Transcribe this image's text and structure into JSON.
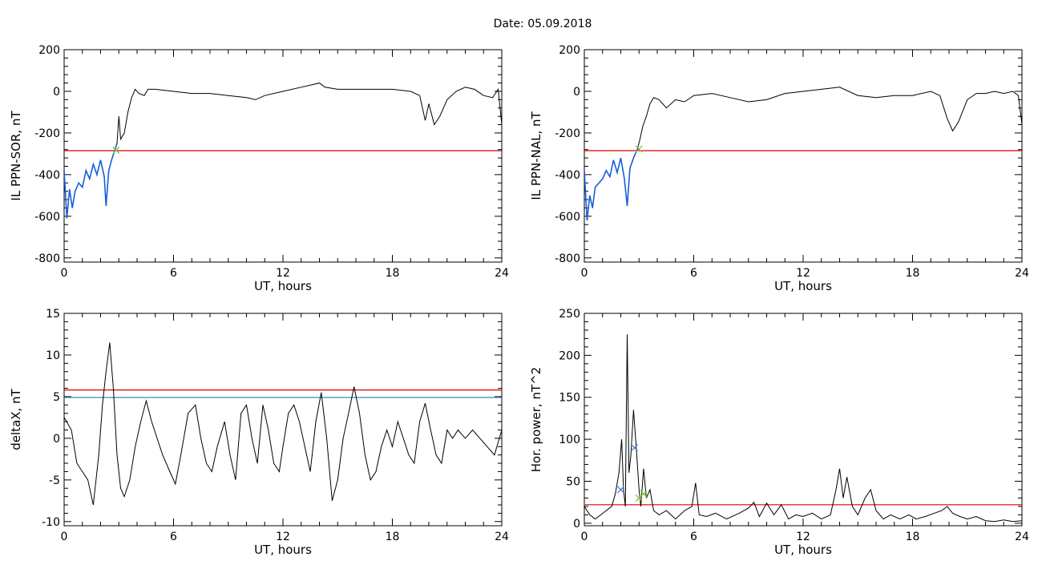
{
  "page": {
    "title": "Date:  05.09.2018"
  },
  "colors": {
    "data": "#000000",
    "threshold": "#e00000",
    "baseline": "#1f7fbf",
    "highlight": "#1a5fd8",
    "marker": "#7fbf3f",
    "marker2": "#4a7fd0"
  },
  "chart_data": [
    {
      "type": "line",
      "id": "il-sor",
      "xlabel": "UT, hours",
      "ylabel": "IL PPN-SOR, nT",
      "xlim": [
        0,
        24
      ],
      "ylim": [
        -820,
        200
      ],
      "xticks": [
        0,
        6,
        12,
        18,
        24
      ],
      "yticks": [
        -800,
        -600,
        -400,
        -200,
        0,
        200
      ],
      "threshold": -285,
      "series": [
        {
          "values_xy": [
            [
              0,
              -380
            ],
            [
              0.15,
              -610
            ],
            [
              0.3,
              -470
            ],
            [
              0.45,
              -560
            ],
            [
              0.6,
              -480
            ],
            [
              0.8,
              -440
            ],
            [
              1.0,
              -460
            ],
            [
              1.2,
              -380
            ],
            [
              1.4,
              -420
            ],
            [
              1.6,
              -350
            ],
            [
              1.8,
              -400
            ],
            [
              2.0,
              -330
            ],
            [
              2.2,
              -410
            ],
            [
              2.3,
              -550
            ],
            [
              2.45,
              -380
            ],
            [
              2.6,
              -330
            ],
            [
              2.75,
              -290
            ],
            [
              2.9,
              -250
            ],
            [
              3.0,
              -120
            ],
            [
              3.1,
              -230
            ],
            [
              3.3,
              -200
            ],
            [
              3.5,
              -100
            ],
            [
              3.7,
              -30
            ],
            [
              3.9,
              10
            ],
            [
              4.1,
              -10
            ],
            [
              4.4,
              -20
            ],
            [
              4.6,
              10
            ],
            [
              5,
              10
            ],
            [
              6,
              0
            ],
            [
              7,
              -10
            ],
            [
              8,
              -10
            ],
            [
              9,
              -20
            ],
            [
              10,
              -30
            ],
            [
              10.5,
              -40
            ],
            [
              11,
              -20
            ],
            [
              12,
              0
            ],
            [
              13,
              20
            ],
            [
              14,
              40
            ],
            [
              14.3,
              20
            ],
            [
              15,
              10
            ],
            [
              16,
              10
            ],
            [
              17,
              10
            ],
            [
              18,
              10
            ],
            [
              19,
              0
            ],
            [
              19.5,
              -20
            ],
            [
              19.8,
              -140
            ],
            [
              20.0,
              -60
            ],
            [
              20.3,
              -160
            ],
            [
              20.6,
              -120
            ],
            [
              21,
              -40
            ],
            [
              21.5,
              0
            ],
            [
              22,
              20
            ],
            [
              22.5,
              10
            ],
            [
              23,
              -20
            ],
            [
              23.5,
              -30
            ],
            [
              23.8,
              10
            ],
            [
              24,
              -160
            ]
          ]
        }
      ],
      "highlight_range": [
        0,
        2.95
      ],
      "markers": [
        [
          2.85,
          -283
        ]
      ]
    },
    {
      "type": "line",
      "id": "il-nal",
      "xlabel": "UT, hours",
      "ylabel": "IL PPN-NAL, nT",
      "xlim": [
        0,
        24
      ],
      "ylim": [
        -820,
        200
      ],
      "xticks": [
        0,
        6,
        12,
        18,
        24
      ],
      "yticks": [
        -800,
        -600,
        -400,
        -200,
        0,
        200
      ],
      "threshold": -285,
      "series": [
        {
          "values_xy": [
            [
              0,
              -380
            ],
            [
              0.15,
              -620
            ],
            [
              0.3,
              -500
            ],
            [
              0.45,
              -560
            ],
            [
              0.6,
              -460
            ],
            [
              0.8,
              -440
            ],
            [
              1.0,
              -420
            ],
            [
              1.2,
              -380
            ],
            [
              1.4,
              -410
            ],
            [
              1.6,
              -330
            ],
            [
              1.8,
              -390
            ],
            [
              2.0,
              -320
            ],
            [
              2.2,
              -420
            ],
            [
              2.35,
              -550
            ],
            [
              2.5,
              -370
            ],
            [
              2.7,
              -320
            ],
            [
              2.9,
              -280
            ],
            [
              3.05,
              -230
            ],
            [
              3.2,
              -170
            ],
            [
              3.4,
              -120
            ],
            [
              3.6,
              -60
            ],
            [
              3.8,
              -30
            ],
            [
              4.1,
              -40
            ],
            [
              4.5,
              -80
            ],
            [
              5,
              -40
            ],
            [
              5.5,
              -50
            ],
            [
              6,
              -20
            ],
            [
              7,
              -10
            ],
            [
              8,
              -30
            ],
            [
              9,
              -50
            ],
            [
              10,
              -40
            ],
            [
              11,
              -10
            ],
            [
              12,
              0
            ],
            [
              13,
              10
            ],
            [
              14,
              20
            ],
            [
              15,
              -20
            ],
            [
              16,
              -30
            ],
            [
              17,
              -20
            ],
            [
              18,
              -20
            ],
            [
              19,
              0
            ],
            [
              19.5,
              -20
            ],
            [
              19.9,
              -130
            ],
            [
              20.2,
              -190
            ],
            [
              20.5,
              -150
            ],
            [
              21,
              -40
            ],
            [
              21.5,
              -10
            ],
            [
              22,
              -10
            ],
            [
              22.5,
              0
            ],
            [
              23,
              -10
            ],
            [
              23.5,
              0
            ],
            [
              23.8,
              -20
            ],
            [
              24,
              -160
            ]
          ]
        }
      ],
      "highlight_range": [
        0,
        3.0
      ],
      "markers": [
        [
          3.0,
          -277
        ]
      ]
    },
    {
      "type": "line",
      "id": "deltax",
      "xlabel": "UT, hours",
      "ylabel": "deltaX, nT",
      "xlim": [
        0,
        24
      ],
      "ylim": [
        -10.5,
        15
      ],
      "xticks": [
        0,
        6,
        12,
        18,
        24
      ],
      "yticks": [
        -10,
        -5,
        0,
        5,
        10,
        15
      ],
      "threshold": 5.8,
      "baseline": 4.9,
      "series": [
        {
          "values_xy": [
            [
              0,
              2.5
            ],
            [
              0.4,
              1
            ],
            [
              0.7,
              -3
            ],
            [
              1.0,
              -4
            ],
            [
              1.3,
              -5
            ],
            [
              1.6,
              -8
            ],
            [
              1.9,
              -2
            ],
            [
              2.1,
              4
            ],
            [
              2.3,
              8
            ],
            [
              2.5,
              11.5
            ],
            [
              2.7,
              6
            ],
            [
              2.9,
              -2
            ],
            [
              3.1,
              -6
            ],
            [
              3.3,
              -7
            ],
            [
              3.6,
              -5
            ],
            [
              3.9,
              -1
            ],
            [
              4.2,
              2
            ],
            [
              4.5,
              4.5
            ],
            [
              4.8,
              2
            ],
            [
              5.1,
              0
            ],
            [
              5.4,
              -2
            ],
            [
              5.8,
              -4
            ],
            [
              6.1,
              -5.5
            ],
            [
              6.4,
              -2
            ],
            [
              6.8,
              3
            ],
            [
              7.2,
              4
            ],
            [
              7.5,
              0
            ],
            [
              7.8,
              -3
            ],
            [
              8.1,
              -4
            ],
            [
              8.4,
              -1
            ],
            [
              8.8,
              2
            ],
            [
              9.1,
              -2
            ],
            [
              9.4,
              -5
            ],
            [
              9.7,
              3
            ],
            [
              10.0,
              4
            ],
            [
              10.3,
              0
            ],
            [
              10.6,
              -3
            ],
            [
              10.9,
              4
            ],
            [
              11.2,
              1
            ],
            [
              11.5,
              -3
            ],
            [
              11.8,
              -4
            ],
            [
              12.0,
              -1
            ],
            [
              12.3,
              3
            ],
            [
              12.6,
              4
            ],
            [
              12.9,
              2
            ],
            [
              13.2,
              -1
            ],
            [
              13.5,
              -4
            ],
            [
              13.8,
              2
            ],
            [
              14.1,
              5.5
            ],
            [
              14.4,
              0
            ],
            [
              14.7,
              -7.5
            ],
            [
              15.0,
              -5
            ],
            [
              15.3,
              0
            ],
            [
              15.6,
              3
            ],
            [
              15.9,
              6.2
            ],
            [
              16.2,
              3
            ],
            [
              16.5,
              -2
            ],
            [
              16.8,
              -5
            ],
            [
              17.1,
              -4
            ],
            [
              17.4,
              -1
            ],
            [
              17.7,
              1
            ],
            [
              18.0,
              -1
            ],
            [
              18.3,
              2
            ],
            [
              18.6,
              0
            ],
            [
              18.9,
              -2
            ],
            [
              19.2,
              -3
            ],
            [
              19.5,
              2
            ],
            [
              19.8,
              4.2
            ],
            [
              20.1,
              1
            ],
            [
              20.4,
              -2
            ],
            [
              20.7,
              -3
            ],
            [
              21.0,
              1
            ],
            [
              21.3,
              0
            ],
            [
              21.6,
              1
            ],
            [
              22.0,
              0
            ],
            [
              22.4,
              1
            ],
            [
              22.8,
              0
            ],
            [
              23.2,
              -1
            ],
            [
              23.6,
              -2
            ],
            [
              24,
              1
            ]
          ]
        }
      ]
    },
    {
      "type": "line",
      "id": "hor-power",
      "xlabel": "UT, hours",
      "ylabel": "Hor. power, nT^2",
      "xlim": [
        0,
        24
      ],
      "ylim": [
        -3,
        250
      ],
      "xticks": [
        0,
        6,
        12,
        18,
        24
      ],
      "yticks": [
        0,
        50,
        100,
        150,
        200,
        250
      ],
      "threshold": 22,
      "series": [
        {
          "values_xy": [
            [
              0,
              20
            ],
            [
              0.3,
              10
            ],
            [
              0.6,
              5
            ],
            [
              0.9,
              10
            ],
            [
              1.2,
              15
            ],
            [
              1.5,
              20
            ],
            [
              1.7,
              35
            ],
            [
              1.9,
              60
            ],
            [
              2.05,
              100
            ],
            [
              2.15,
              40
            ],
            [
              2.25,
              20
            ],
            [
              2.35,
              225
            ],
            [
              2.45,
              60
            ],
            [
              2.55,
              80
            ],
            [
              2.7,
              135
            ],
            [
              2.85,
              90
            ],
            [
              3.0,
              40
            ],
            [
              3.1,
              20
            ],
            [
              3.25,
              65
            ],
            [
              3.4,
              30
            ],
            [
              3.6,
              40
            ],
            [
              3.8,
              15
            ],
            [
              4.1,
              10
            ],
            [
              4.5,
              15
            ],
            [
              5.0,
              5
            ],
            [
              5.5,
              15
            ],
            [
              5.9,
              20
            ],
            [
              6.1,
              48
            ],
            [
              6.3,
              10
            ],
            [
              6.7,
              8
            ],
            [
              7.2,
              12
            ],
            [
              7.8,
              5
            ],
            [
              8.5,
              12
            ],
            [
              9.0,
              18
            ],
            [
              9.3,
              25
            ],
            [
              9.6,
              8
            ],
            [
              10.0,
              24
            ],
            [
              10.4,
              10
            ],
            [
              10.8,
              22
            ],
            [
              11.2,
              5
            ],
            [
              11.6,
              10
            ],
            [
              12.0,
              8
            ],
            [
              12.5,
              12
            ],
            [
              13.0,
              5
            ],
            [
              13.5,
              10
            ],
            [
              13.8,
              40
            ],
            [
              14.0,
              65
            ],
            [
              14.2,
              30
            ],
            [
              14.4,
              55
            ],
            [
              14.7,
              20
            ],
            [
              15.0,
              10
            ],
            [
              15.4,
              30
            ],
            [
              15.7,
              40
            ],
            [
              16.0,
              15
            ],
            [
              16.4,
              5
            ],
            [
              16.8,
              10
            ],
            [
              17.3,
              5
            ],
            [
              17.8,
              10
            ],
            [
              18.2,
              5
            ],
            [
              18.7,
              8
            ],
            [
              19.2,
              12
            ],
            [
              19.6,
              15
            ],
            [
              19.9,
              20
            ],
            [
              20.2,
              12
            ],
            [
              20.6,
              8
            ],
            [
              21.0,
              5
            ],
            [
              21.5,
              8
            ],
            [
              22.0,
              3
            ],
            [
              22.5,
              2
            ],
            [
              23.0,
              4
            ],
            [
              23.5,
              2
            ],
            [
              24,
              3
            ]
          ]
        }
      ],
      "markers": [
        [
          2.0,
          40
        ],
        [
          2.75,
          90
        ],
        [
          3.0,
          30
        ],
        [
          3.25,
          35
        ]
      ]
    }
  ]
}
